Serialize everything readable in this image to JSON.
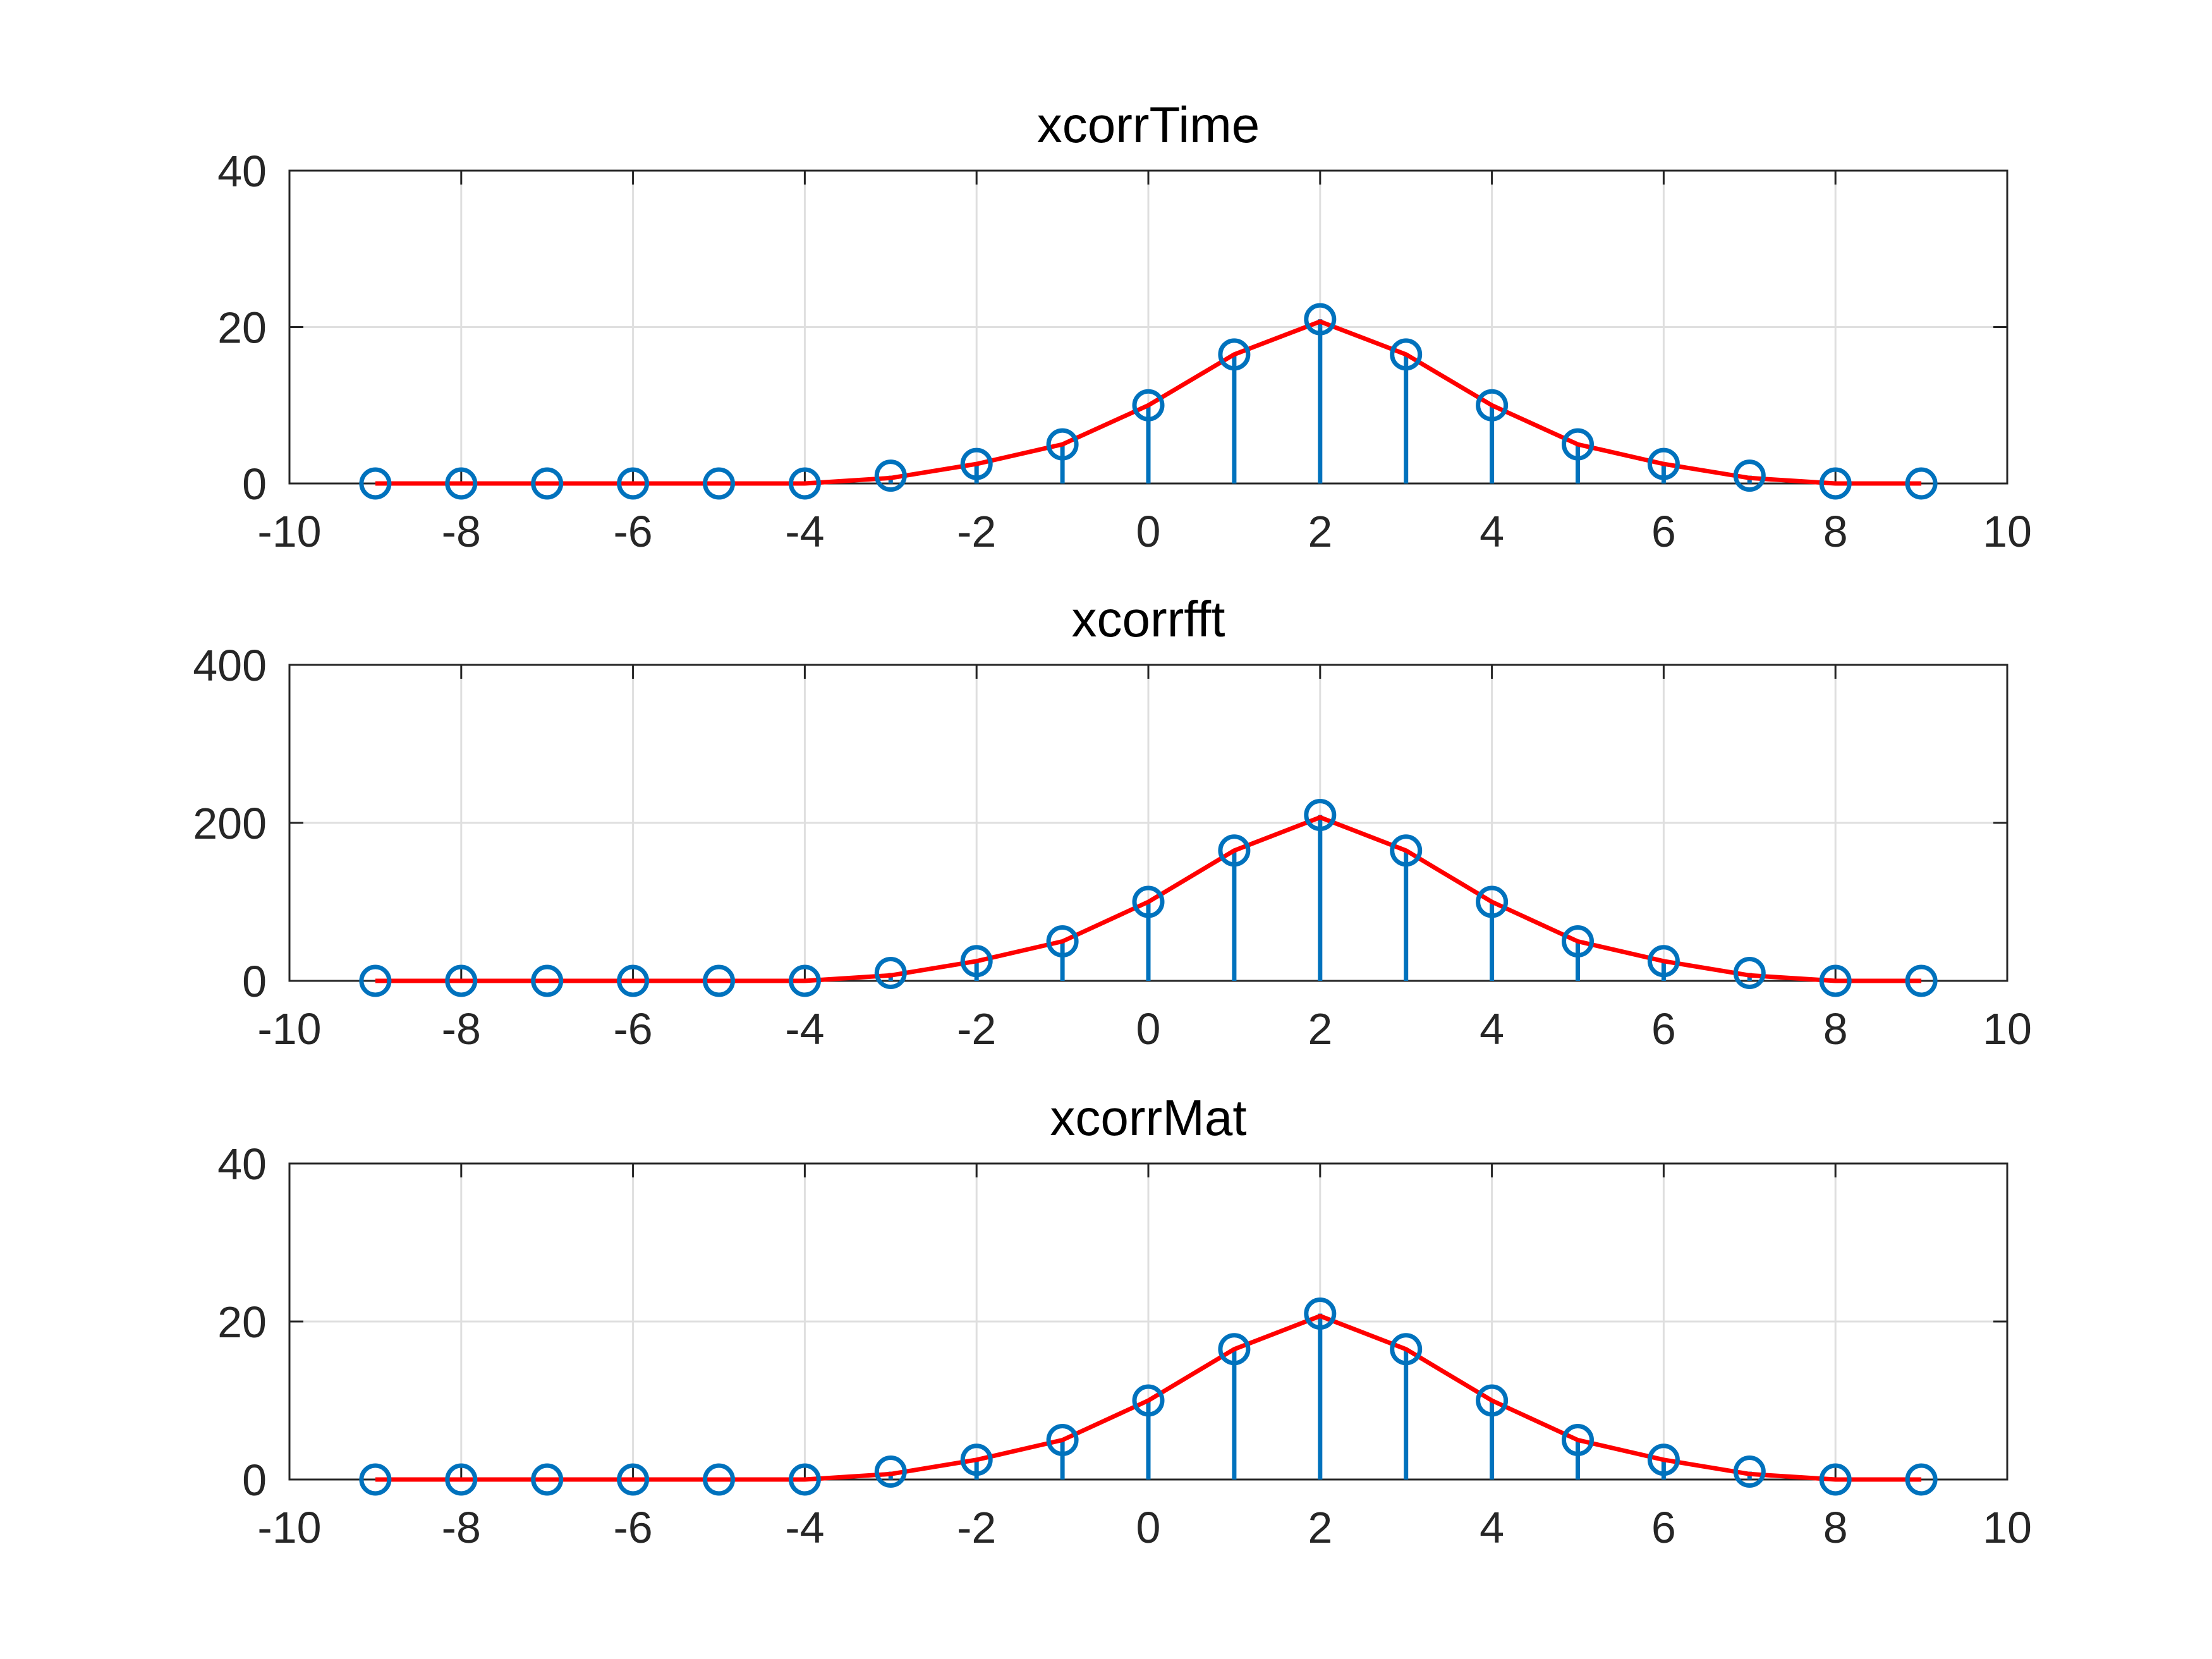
{
  "chart_data": [
    {
      "type": "stem",
      "title": "xcorrTime",
      "xlabel": "",
      "ylabel": "",
      "xlim": [
        -10,
        10
      ],
      "ylim": [
        0,
        40
      ],
      "xticks": [
        "-10",
        "-8",
        "-6",
        "-4",
        "-2",
        "0",
        "2",
        "4",
        "6",
        "8",
        "10"
      ],
      "yticks": [
        "0",
        "20",
        "40"
      ],
      "grid": true,
      "x": [
        -9,
        -8,
        -7,
        -6,
        -5,
        -4,
        -3,
        -2,
        -1,
        0,
        1,
        2,
        3,
        4,
        5,
        6,
        7,
        8,
        9
      ],
      "stem_values": [
        0,
        0,
        0,
        0,
        0,
        0,
        1,
        2.5,
        5,
        10,
        16.5,
        21,
        16.5,
        10,
        5,
        2.5,
        1,
        0,
        0
      ],
      "line_values": [
        0,
        0,
        0,
        0,
        0,
        0,
        0.7,
        2.5,
        5,
        10,
        16.5,
        20.7,
        16.5,
        10,
        5,
        2.5,
        0.7,
        0,
        0
      ],
      "colors": {
        "stem": "#0072bd",
        "line": "#ff0000"
      }
    },
    {
      "type": "stem",
      "title": "xcorrfft",
      "xlabel": "",
      "ylabel": "",
      "xlim": [
        -10,
        10
      ],
      "ylim": [
        0,
        400
      ],
      "xticks": [
        "-10",
        "-8",
        "-6",
        "-4",
        "-2",
        "0",
        "2",
        "4",
        "6",
        "8",
        "10"
      ],
      "yticks": [
        "0",
        "200",
        "400"
      ],
      "grid": true,
      "x": [
        -9,
        -8,
        -7,
        -6,
        -5,
        -4,
        -3,
        -2,
        -1,
        0,
        1,
        2,
        3,
        4,
        5,
        6,
        7,
        8,
        9
      ],
      "stem_values": [
        0,
        0,
        0,
        0,
        0,
        0,
        10,
        25,
        50,
        100,
        165,
        210,
        165,
        100,
        50,
        25,
        10,
        0,
        0
      ],
      "line_values": [
        0,
        0,
        0,
        0,
        0,
        0,
        7,
        25,
        50,
        100,
        165,
        207,
        165,
        100,
        50,
        25,
        7,
        0,
        0
      ],
      "colors": {
        "stem": "#0072bd",
        "line": "#ff0000"
      }
    },
    {
      "type": "stem",
      "title": "xcorrMat",
      "xlabel": "",
      "ylabel": "",
      "xlim": [
        -10,
        10
      ],
      "ylim": [
        0,
        40
      ],
      "xticks": [
        "-10",
        "-8",
        "-6",
        "-4",
        "-2",
        "0",
        "2",
        "4",
        "6",
        "8",
        "10"
      ],
      "yticks": [
        "0",
        "20",
        "40"
      ],
      "grid": true,
      "x": [
        -9,
        -8,
        -7,
        -6,
        -5,
        -4,
        -3,
        -2,
        -1,
        0,
        1,
        2,
        3,
        4,
        5,
        6,
        7,
        8,
        9
      ],
      "stem_values": [
        0,
        0,
        0,
        0,
        0,
        0,
        1,
        2.5,
        5,
        10,
        16.5,
        21,
        16.5,
        10,
        5,
        2.5,
        1,
        0,
        0
      ],
      "line_values": [
        0,
        0,
        0,
        0,
        0,
        0,
        0.7,
        2.5,
        5,
        10,
        16.5,
        20.7,
        16.5,
        10,
        5,
        2.5,
        0.7,
        0,
        0
      ],
      "colors": {
        "stem": "#0072bd",
        "line": "#ff0000"
      }
    }
  ]
}
